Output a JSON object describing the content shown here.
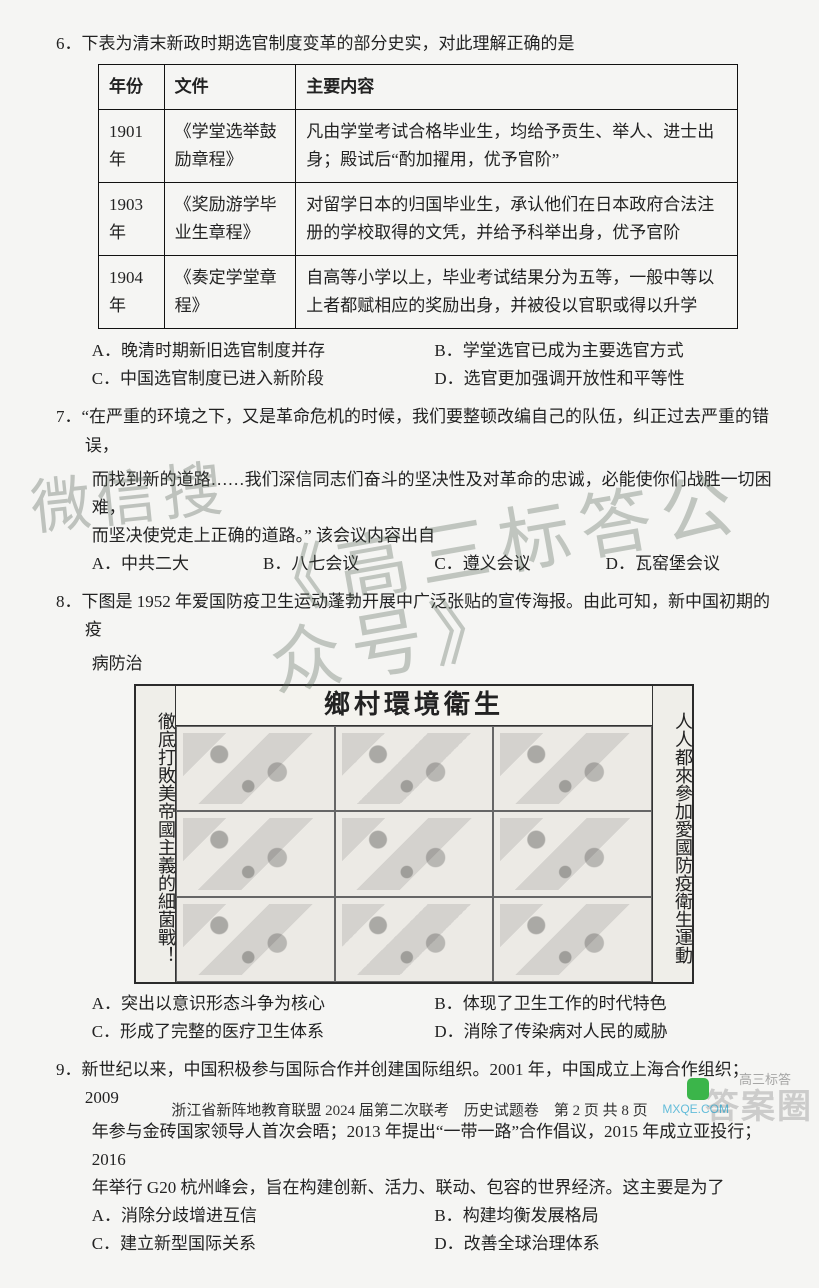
{
  "q6": {
    "num": "6．",
    "stem": "下表为清末新政时期选官制度变革的部分史实，对此理解正确的是",
    "table": {
      "headers": [
        "年份",
        "文件",
        "主要内容"
      ],
      "rows": [
        [
          "1901 年",
          "《学堂选举鼓励章程》",
          "凡由学堂考试合格毕业生，均给予贡生、举人、进士出身；殿试后“酌加擢用，优予官阶”"
        ],
        [
          "1903 年",
          "《奖励游学毕业生章程》",
          "对留学日本的归国毕业生，承认他们在日本政府合法注册的学校取得的文凭，并给予科举出身，优予官阶"
        ],
        [
          "1904 年",
          "《奏定学堂章程》",
          "自高等小学以上，毕业考试结果分为五等，一般中等以上者都赋相应的奖励出身，并被役以官职或得以升学"
        ]
      ]
    },
    "opts": {
      "A": "晚清时期新旧选官制度并存",
      "B": "学堂选官已成为主要选官方式",
      "C": "中国选官制度已进入新阶段",
      "D": "选官更加强调开放性和平等性"
    }
  },
  "q7": {
    "num": "7．",
    "stem_l1": "“在严重的环境之下，又是革命危机的时候，我们要整顿改编自己的队伍，纠正过去严重的错误，",
    "stem_l2": "而找到新的道路……我们深信同志们奋斗的坚决性及对革命的忠诚，必能使你们战胜一切困难，",
    "stem_l3": "而坚决使党走上正确的道路。” 该会议内容出自",
    "opts": {
      "A": "中共二大",
      "B": "八七会议",
      "C": "遵义会议",
      "D": "瓦窑堡会议"
    }
  },
  "q8": {
    "num": "8．",
    "stem_l1": "下图是 1952 年爱国防疫卫生运动蓬勃开展中广泛张贴的宣传海报。由此可知，新中国初期的疫",
    "stem_l2": "病防治",
    "poster": {
      "banner": "鄉村環境衛生",
      "left_strip": "徹底打敗美帝國主義的細菌戰！",
      "right_strip": "人人都來參加愛國防疫衛生運動"
    },
    "opts": {
      "A": "突出以意识形态斗争为核心",
      "B": "体现了卫生工作的时代特色",
      "C": "形成了完整的医疗卫生体系",
      "D": "消除了传染病对人民的威胁"
    }
  },
  "q9": {
    "num": "9．",
    "stem_l1": "新世纪以来，中国积极参与国际合作并创建国际组织。2001 年，中国成立上海合作组织；2009",
    "stem_l2": "年参与金砖国家领导人首次会晤；2013 年提出“一带一路”合作倡议，2015 年成立亚投行；2016",
    "stem_l3": "年举行 G20 杭州峰会，旨在构建创新、活力、联动、包容的世界经济。这主要是为了",
    "opts": {
      "A": "消除分歧增进互信",
      "B": "构建均衡发展格局",
      "C": "建立新型国际关系",
      "D": "改善全球治理体系"
    }
  },
  "footer": "浙江省新阵地教育联盟 2024 届第二次联考　历史试题卷　第 2 页 共 8 页",
  "watermarks": {
    "wm1": "微信搜",
    "wm2": "《高三标答公众号》",
    "wm3": "答案圈",
    "wm4": "高三标答",
    "wm5": "MXQE.COM"
  },
  "colors": {
    "page_bg": "#f5f5f3",
    "text": "#222222",
    "border": "#111111",
    "wm_green": "rgba(90,100,90,.35)"
  }
}
